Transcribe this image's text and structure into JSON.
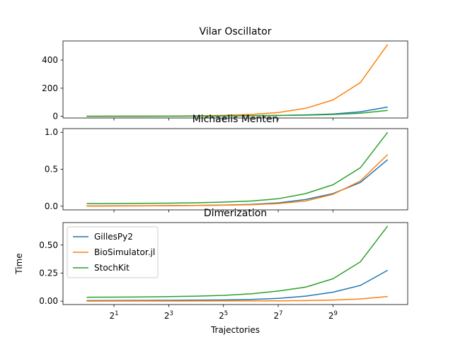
{
  "chart_data": {
    "type": "line",
    "xscale": "log2",
    "xlabel": "Trajectories",
    "xlim": [
      0.55,
      3400
    ],
    "x": [
      1,
      2,
      4,
      8,
      16,
      32,
      64,
      128,
      256,
      512,
      1024,
      2048
    ],
    "xticks": [
      2,
      8,
      32,
      128,
      512
    ],
    "xtick_labels": [
      {
        "base": "2",
        "exp": "1"
      },
      {
        "base": "2",
        "exp": "3"
      },
      {
        "base": "2",
        "exp": "5"
      },
      {
        "base": "2",
        "exp": "7"
      },
      {
        "base": "2",
        "exp": "9"
      }
    ],
    "colors": {
      "GillesPy2": "#1f77b4",
      "BioSimulator.jl": "#ff7f0e",
      "StochKit": "#2ca02c"
    },
    "legend": {
      "location": "upper-left",
      "panel": 2,
      "entries": [
        "GillesPy2",
        "BioSimulator.jl",
        "StochKit"
      ]
    },
    "panels": [
      {
        "title": "Vilar Oscillator",
        "ylabel": "",
        "ylim": [
          -12,
          536
        ],
        "yticks": [
          0,
          200,
          400
        ],
        "ytick_labels": [
          "0",
          "200",
          "400"
        ],
        "series": [
          {
            "name": "GillesPy2",
            "values": [
              0.3,
              0.4,
              0.6,
              0.9,
              1.5,
              2.5,
              4.0,
              6.0,
              10,
              16,
              32,
              66
            ]
          },
          {
            "name": "BioSimulator.jl",
            "values": [
              0.2,
              0.4,
              0.8,
              1.6,
              3.0,
              6.5,
              13,
              27,
              57,
              116,
              240,
              512
            ]
          },
          {
            "name": "StochKit",
            "values": [
              0.5,
              0.6,
              0.8,
              1.2,
              2.0,
              3.0,
              4.5,
              6.0,
              8.0,
              13,
              22,
              42
            ]
          }
        ]
      },
      {
        "title": "Michaelis Menten",
        "ylabel": "",
        "ylim": [
          -0.05,
          1.05
        ],
        "yticks": [
          0,
          0.5,
          1.0
        ],
        "ytick_labels": [
          "0.0",
          "0.5",
          "1.0"
        ],
        "series": [
          {
            "name": "GillesPy2",
            "values": [
              0.003,
              0.004,
              0.005,
              0.007,
              0.01,
              0.015,
              0.025,
              0.045,
              0.09,
              0.17,
              0.32,
              0.63
            ]
          },
          {
            "name": "BioSimulator.jl",
            "values": [
              0.002,
              0.003,
              0.004,
              0.006,
              0.009,
              0.013,
              0.02,
              0.035,
              0.07,
              0.16,
              0.34,
              0.7
            ]
          },
          {
            "name": "StochKit",
            "values": [
              0.035,
              0.036,
              0.038,
              0.041,
              0.046,
              0.055,
              0.07,
              0.1,
              0.17,
              0.29,
              0.52,
              1.0
            ]
          }
        ]
      },
      {
        "title": "Dimerization",
        "ylabel": "Time",
        "ylim": [
          -0.03,
          0.7
        ],
        "yticks": [
          0,
          0.25,
          0.5
        ],
        "ytick_labels": [
          "0.00",
          "0.25",
          "0.50"
        ],
        "series": [
          {
            "name": "GillesPy2",
            "values": [
              0.005,
              0.006,
              0.007,
              0.008,
              0.009,
              0.011,
              0.015,
              0.025,
              0.045,
              0.08,
              0.14,
              0.275
            ]
          },
          {
            "name": "BioSimulator.jl",
            "values": [
              0.001,
              0.0012,
              0.0014,
              0.0016,
              0.0018,
              0.002,
              0.0025,
              0.003,
              0.005,
              0.01,
              0.02,
              0.042
            ]
          },
          {
            "name": "StochKit",
            "values": [
              0.035,
              0.036,
              0.038,
              0.041,
              0.045,
              0.052,
              0.065,
              0.09,
              0.125,
              0.2,
              0.35,
              0.67
            ]
          }
        ]
      }
    ]
  }
}
